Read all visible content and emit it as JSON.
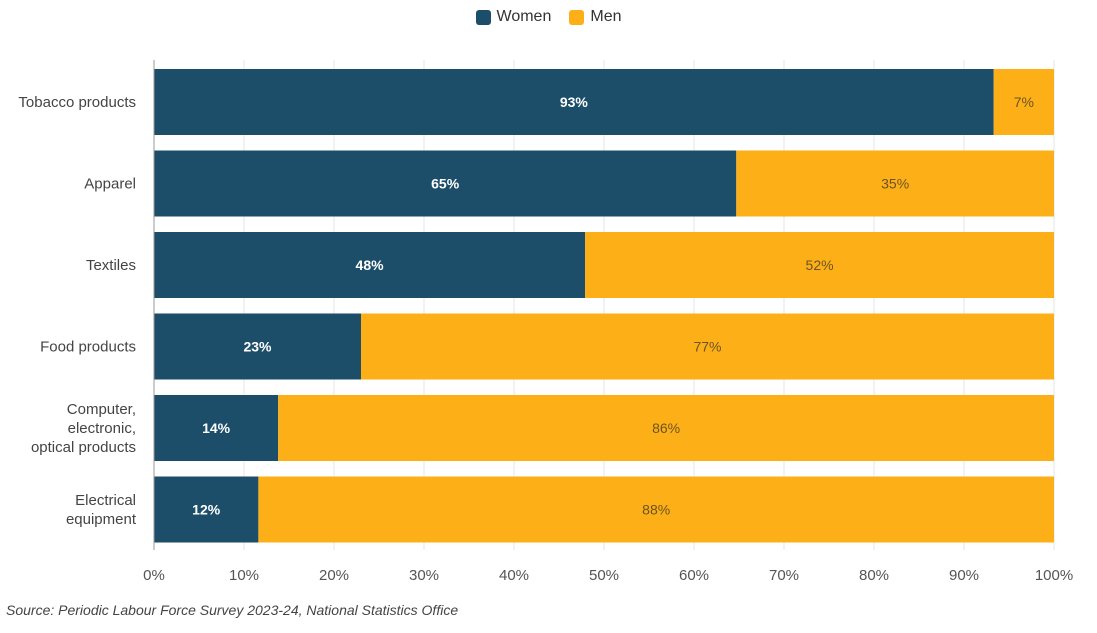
{
  "colors": {
    "women": "#1c4e6a",
    "men": "#fdaf17",
    "grid": "#e6e6e6",
    "axis": "#999999"
  },
  "chart_data": {
    "type": "bar",
    "orientation": "horizontal",
    "stacked": true,
    "categories": [
      "Tobacco products",
      "Apparel",
      "Textiles",
      "Food products",
      "Computer, electronic, optical products",
      "Electrical equipment"
    ],
    "category_lines": [
      [
        "Tobacco products"
      ],
      [
        "Apparel"
      ],
      [
        "Textiles"
      ],
      [
        "Food products"
      ],
      [
        "Computer,",
        "electronic,",
        "optical products"
      ],
      [
        "Electrical",
        "equipment"
      ]
    ],
    "series": [
      {
        "name": "Women",
        "values": [
          93.3,
          64.7,
          47.9,
          23.0,
          13.8,
          11.6
        ],
        "labels": [
          "93%",
          "65%",
          "48%",
          "23%",
          "14%",
          "12%"
        ]
      },
      {
        "name": "Men",
        "values": [
          6.7,
          35.3,
          52.1,
          77.0,
          86.2,
          88.4
        ],
        "labels": [
          "7%",
          "35%",
          "52%",
          "77%",
          "86%",
          "88%"
        ]
      }
    ],
    "xlim": [
      0,
      100
    ],
    "x_ticks": [
      0,
      10,
      20,
      30,
      40,
      50,
      60,
      70,
      80,
      90,
      100
    ],
    "x_tick_labels": [
      "0%",
      "10%",
      "20%",
      "30%",
      "40%",
      "50%",
      "60%",
      "70%",
      "80%",
      "90%",
      "100%"
    ],
    "grid": true,
    "legend_position": "top-center"
  },
  "source": "Source: Periodic Labour Force Survey 2023-24, National Statistics Office"
}
